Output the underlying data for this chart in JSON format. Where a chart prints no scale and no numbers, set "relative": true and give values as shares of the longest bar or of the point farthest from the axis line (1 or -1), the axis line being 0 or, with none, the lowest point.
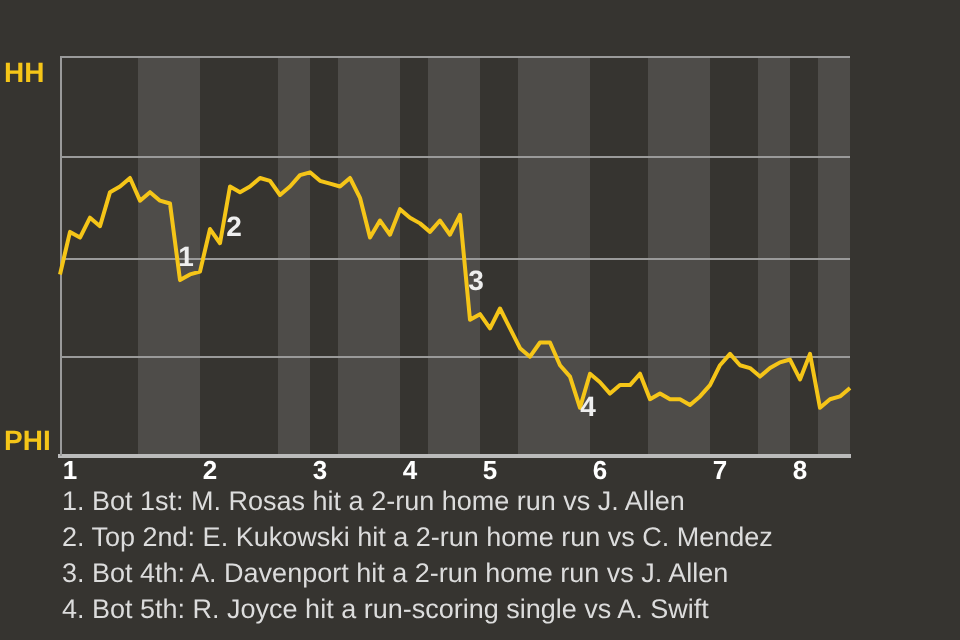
{
  "chart_data": {
    "type": "line",
    "relative": true,
    "categories": [
      null,
      "1",
      null,
      null,
      null,
      null,
      null,
      null,
      null,
      null,
      null,
      null,
      null,
      null,
      null,
      "2",
      null,
      null,
      null,
      null,
      null,
      null,
      null,
      null,
      null,
      null,
      "3",
      null,
      null,
      null,
      null,
      null,
      null,
      null,
      null,
      "4",
      null,
      null,
      null,
      null,
      null,
      null,
      null,
      "5",
      null,
      null,
      null,
      null,
      null,
      null,
      null,
      null,
      null,
      null,
      "6",
      null,
      null,
      null,
      null,
      null,
      null,
      null,
      null,
      null,
      null,
      null,
      "7",
      null,
      null,
      null,
      null,
      null,
      null,
      null,
      "8",
      null,
      null,
      null,
      null,
      null
    ],
    "series": [
      {
        "color": "#f5c518",
        "values": [
          0.64,
          0.79,
          0.77,
          0.84,
          0.81,
          0.93,
          0.95,
          0.98,
          0.9,
          0.93,
          0.9,
          0.89,
          0.62,
          0.64,
          0.65,
          0.8,
          0.75,
          0.95,
          0.93,
          0.95,
          0.98,
          0.97,
          0.92,
          0.95,
          0.99,
          1,
          0.97,
          0.96,
          0.95,
          0.98,
          0.91,
          0.77,
          0.83,
          0.78,
          0.87,
          0.84,
          0.82,
          0.79,
          0.83,
          0.78,
          0.85,
          0.48,
          0.5,
          0.45,
          0.52,
          0.45,
          0.38,
          0.35,
          0.4,
          0.4,
          0.32,
          0.28,
          0.17,
          0.29,
          0.26,
          0.22,
          0.25,
          0.25,
          0.29,
          0.2,
          0.22,
          0.2,
          0.2,
          0.18,
          0.21,
          0.25,
          0.32,
          0.36,
          0.32,
          0.31,
          0.28,
          0.31,
          0.33,
          0.34,
          0.27,
          0.36,
          0.17,
          0.2,
          0.21,
          0.24
        ]
      }
    ],
    "marker": "none",
    "ref_lines": [
      {
        "axis": "y",
        "value": 0.35,
        "color": "#9a9a9a"
      },
      {
        "axis": "y",
        "value": 0.7,
        "color": "#9a9a9a"
      },
      {
        "axis": "y",
        "value": 1.06,
        "color": "#9a9a9a"
      },
      {
        "axis": "y",
        "value": 1.41,
        "color": "#9a9a9a"
      }
    ],
    "annotations": [
      "HH",
      "PHI",
      "1",
      "2",
      "3",
      "4",
      "1. Bot 1st: M. Rosas hit a 2-run home run vs J. Allen",
      "2. Top 2nd: E. Kukowski hit a 2-run home run vs C. Mendez",
      "3. Bot 4th: A. Davenport hit a 2-run home run vs J. Allen",
      "4. Bot 5th: R. Joyce hit a run-scoring single vs A. Swift"
    ]
  }
}
